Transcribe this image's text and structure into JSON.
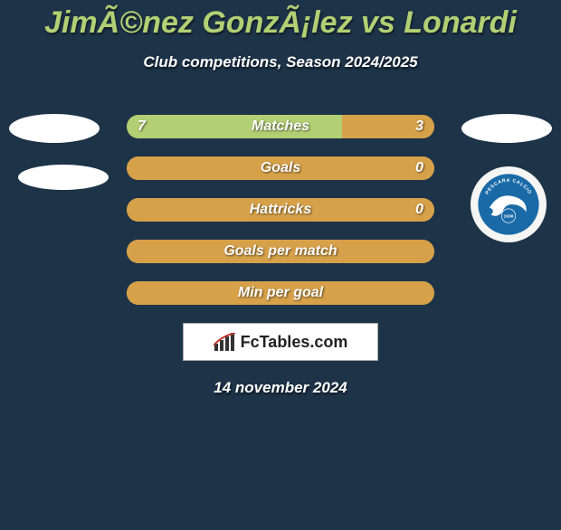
{
  "title": "JimÃ©nez GonzÃ¡lez vs Lonardi",
  "subtitle": "Club competitions, Season 2024/2025",
  "brand": "FcTables.com",
  "date": "14 november 2024",
  "colors": {
    "background": "#1d3348",
    "title": "#b3cf73",
    "bar_base": "#e0a94a",
    "left_fill": "#b3cf73",
    "right_fill": "#d6a149",
    "text": "#ffffff"
  },
  "bars": [
    {
      "label": "Matches",
      "left": "7",
      "right": "3",
      "left_pct": 70,
      "right_pct": 30
    },
    {
      "label": "Goals",
      "left": "",
      "right": "0",
      "left_pct": 0,
      "right_pct": 100
    },
    {
      "label": "Hattricks",
      "left": "",
      "right": "0",
      "left_pct": 0,
      "right_pct": 100
    },
    {
      "label": "Goals per match",
      "left": "",
      "right": "",
      "left_pct": 0,
      "right_pct": 100
    },
    {
      "label": "Min per goal",
      "left": "",
      "right": "",
      "left_pct": 0,
      "right_pct": 100
    }
  ],
  "club_logo": {
    "name": "Pescara Calcio",
    "primary": "#1a6aa8",
    "secondary": "#ffffff",
    "text": "PESCARA CALCIO",
    "year": "1936"
  }
}
